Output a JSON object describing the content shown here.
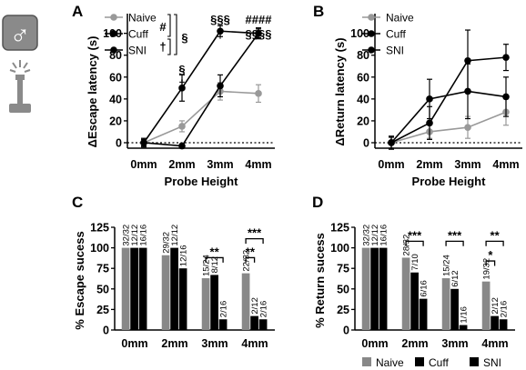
{
  "icons": {
    "male_symbol": "♂",
    "male_icon": "male-symbol-icon",
    "probe_icon": "probe-with-sparks-icon"
  },
  "colors": {
    "naive": "#999999",
    "cuff": "#000000",
    "sni": "#000000",
    "naive_bar": "#888888",
    "icon": "#8a8a8a"
  },
  "chart_data": [
    {
      "panel": "A",
      "type": "line",
      "ylabel": "ΔEscape latency (s)",
      "xlabel": "Probe Height",
      "categories": [
        "0mm",
        "2mm",
        "3mm",
        "4mm"
      ],
      "yticks": [
        "0",
        "20",
        "40",
        "60",
        "80",
        "100"
      ],
      "ylim": [
        -5,
        118
      ],
      "baseline_dashed": true,
      "legend": "top-left",
      "series": [
        {
          "name": "Naive",
          "values": [
            0,
            15,
            47,
            45
          ],
          "err": [
            4,
            5,
            8,
            8
          ]
        },
        {
          "name": "Cuff",
          "values": [
            0,
            50,
            102,
            100
          ],
          "err": [
            4,
            12,
            5,
            5
          ]
        },
        {
          "name": "SNI",
          "values": [
            0,
            -3,
            52,
            100
          ],
          "err": [
            3,
            2,
            10,
            4
          ]
        }
      ],
      "legend_brackets": [
        "#",
        "†",
        "§"
      ],
      "annotations": [
        {
          "category": "2mm",
          "lines": [
            "§",
            "†"
          ]
        },
        {
          "category": "3mm",
          "lines": [
            "§§§",
            "†"
          ]
        },
        {
          "category": "4mm",
          "lines": [
            "####",
            "§§§§"
          ]
        }
      ]
    },
    {
      "panel": "B",
      "type": "line",
      "ylabel": "ΔReturn latency (s)",
      "xlabel": "Probe Height",
      "categories": [
        "0mm",
        "2mm",
        "3mm",
        "4mm"
      ],
      "yticks": [
        "0",
        "20",
        "40",
        "60",
        "80",
        "100"
      ],
      "ylim": [
        -5,
        118
      ],
      "baseline_dashed": true,
      "legend": "top-left",
      "series": [
        {
          "name": "Naive",
          "values": [
            0,
            10,
            14,
            28
          ],
          "err": [
            5,
            6,
            10,
            12
          ]
        },
        {
          "name": "Cuff",
          "values": [
            0,
            40,
            47,
            42
          ],
          "err": [
            5,
            18,
            25,
            18
          ]
        },
        {
          "name": "SNI",
          "values": [
            0,
            18,
            75,
            78
          ],
          "err": [
            6,
            15,
            28,
            12
          ]
        }
      ]
    },
    {
      "panel": "C",
      "type": "bar",
      "ylabel": "% Escape sucess",
      "categories": [
        "0mm",
        "2mm",
        "3mm",
        "4mm"
      ],
      "yticks": [
        "0",
        "25",
        "50",
        "75",
        "100",
        "125"
      ],
      "ylim": [
        0,
        125
      ],
      "series": [
        {
          "name": "Naive",
          "values": [
            100,
            91,
            63,
            69
          ],
          "labels": [
            "32/32",
            "29/32",
            "15/24",
            "22/32"
          ]
        },
        {
          "name": "Cuff",
          "values": [
            100,
            100,
            67,
            17
          ],
          "labels": [
            "12/12",
            "12/12",
            "8/12",
            "2/12"
          ]
        },
        {
          "name": "SNI",
          "values": [
            100,
            75,
            13,
            13
          ],
          "labels": [
            "16/16",
            "12/16",
            "2/16",
            "2/16"
          ]
        }
      ],
      "significance": [
        {
          "category": "3mm",
          "from": 0,
          "to": 2,
          "stars": "**",
          "level": 88
        },
        {
          "category": "4mm",
          "from": 0,
          "to": 1,
          "stars": "**",
          "level": 88
        },
        {
          "category": "4mm",
          "from": 0,
          "to": 2,
          "stars": "***",
          "level": 111
        }
      ]
    },
    {
      "panel": "D",
      "type": "bar",
      "ylabel": "% Return sucess",
      "categories": [
        "0mm",
        "2mm",
        "3mm",
        "4mm"
      ],
      "yticks": [
        "0",
        "25",
        "50",
        "75",
        "100",
        "125"
      ],
      "ylim": [
        0,
        125
      ],
      "legend": "bottom",
      "series": [
        {
          "name": "Naive",
          "values": [
            100,
            88,
            63,
            59
          ],
          "labels": [
            "32/32",
            "28/32",
            "15/24",
            "19/32"
          ]
        },
        {
          "name": "Cuff",
          "values": [
            100,
            70,
            50,
            17
          ],
          "labels": [
            "12/12",
            "7/10",
            "6/12",
            "2/12"
          ]
        },
        {
          "name": "SNI",
          "values": [
            100,
            38,
            6,
            13
          ],
          "labels": [
            "16/16",
            "6/16",
            "1/16",
            "2/16"
          ]
        }
      ],
      "significance": [
        {
          "category": "2mm",
          "from": 0,
          "to": 2,
          "stars": "***",
          "level": 108
        },
        {
          "category": "3mm",
          "from": 0,
          "to": 2,
          "stars": "***",
          "level": 108
        },
        {
          "category": "4mm",
          "from": 0,
          "to": 1,
          "stars": "*",
          "level": 84
        },
        {
          "category": "4mm",
          "from": 0,
          "to": 2,
          "stars": "**",
          "level": 108
        }
      ]
    }
  ]
}
